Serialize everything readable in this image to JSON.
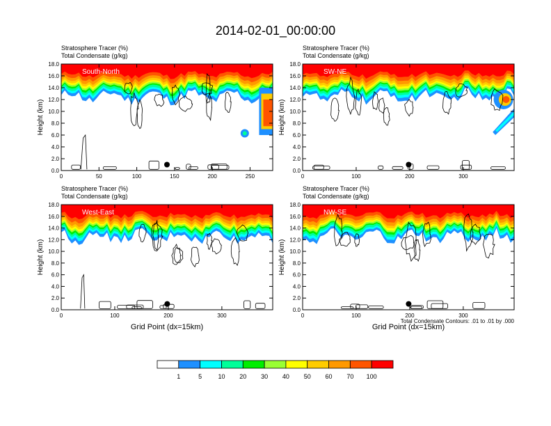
{
  "figure": {
    "title": "2014-02-01_00:00:00",
    "colorbar": {
      "ticks": [
        "1",
        "5",
        "10",
        "20",
        "30",
        "40",
        "50",
        "60",
        "70",
        "100"
      ],
      "colors": [
        "#ffffff",
        "#1e90ff",
        "#00ffff",
        "#00ff99",
        "#00ee00",
        "#99ff33",
        "#ffff00",
        "#ffcc00",
        "#ff9900",
        "#ff5500",
        "#ff0000"
      ]
    },
    "contour_note": "Total Condensate Contours: .01 to .01 by .000"
  },
  "chart_data": [
    {
      "type": "heatmap",
      "label": "South-North",
      "title_line1": "Stratosphere Tracer   (%)",
      "title_line2": "Total Condensate   (g/kg)",
      "ylabel": "Height (km)",
      "xlabel": "",
      "xlim": [
        0,
        280
      ],
      "ylim": [
        0,
        18
      ],
      "xticks": [
        0,
        50,
        100,
        150,
        200,
        250
      ],
      "yticks": [
        "0.0",
        "2.0",
        "4.0",
        "6.0",
        "8.0",
        "10.0",
        "12.0",
        "14.0",
        "16.0",
        "18.0"
      ],
      "marker_x": 140,
      "marker_y": 1
    },
    {
      "type": "heatmap",
      "label": "SW-NE",
      "title_line1": "Stratosphere Tracer   (%)",
      "title_line2": "Total Condensate   (g/kg)",
      "ylabel": "Height (km)",
      "xlabel": "",
      "xlim": [
        0,
        395
      ],
      "ylim": [
        0,
        18
      ],
      "xticks": [
        0,
        100,
        200,
        300
      ],
      "yticks": [
        "0.0",
        "2.0",
        "4.0",
        "6.0",
        "8.0",
        "10.0",
        "12.0",
        "14.0",
        "16.0",
        "18.0"
      ],
      "marker_x": 198,
      "marker_y": 1
    },
    {
      "type": "heatmap",
      "label": "West-East",
      "title_line1": "Stratosphere Tracer   (%)",
      "title_line2": "Total Condensate   (g/kg)",
      "ylabel": "Height (km)",
      "xlabel": "Grid Point (dx=15km)",
      "xlim": [
        0,
        395
      ],
      "ylim": [
        0,
        18
      ],
      "xticks": [
        0,
        100,
        200,
        300
      ],
      "yticks": [
        "0.0",
        "2.0",
        "4.0",
        "6.0",
        "8.0",
        "10.0",
        "12.0",
        "14.0",
        "16.0",
        "18.0"
      ],
      "marker_x": 198,
      "marker_y": 1
    },
    {
      "type": "heatmap",
      "label": "NW-SE",
      "title_line1": "Stratosphere Tracer   (%)",
      "title_line2": "Total Condensate   (g/kg)",
      "ylabel": "Height (km)",
      "xlabel": "Grid Point (dx=15km)",
      "xlim": [
        0,
        395
      ],
      "ylim": [
        0,
        18
      ],
      "xticks": [
        0,
        100,
        200,
        300
      ],
      "yticks": [
        "0.0",
        "2.0",
        "4.0",
        "6.0",
        "8.0",
        "10.0",
        "12.0",
        "14.0",
        "16.0",
        "18.0"
      ],
      "marker_x": 198,
      "marker_y": 1
    }
  ]
}
